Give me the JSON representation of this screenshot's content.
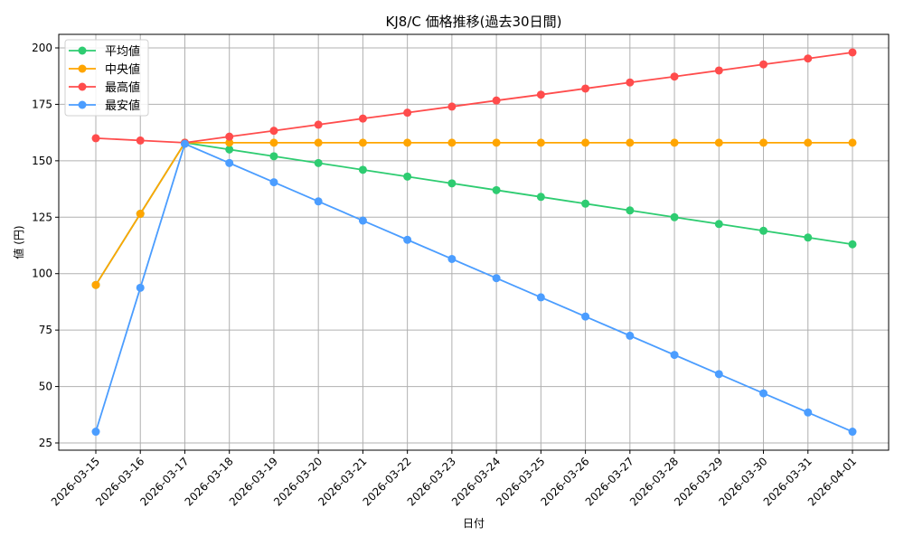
{
  "chart_data": {
    "type": "line",
    "title": "KJ8/C 価格推移(過去30日間)",
    "xlabel": "日付",
    "ylabel": "値 (円)",
    "ylim": [
      22,
      206
    ],
    "yticks": [
      25,
      50,
      75,
      100,
      125,
      150,
      175,
      200
    ],
    "grid": true,
    "legend_position": "top-left",
    "x": [
      "2026-03-15",
      "2026-03-16",
      "2026-03-17",
      "2026-03-18",
      "2026-03-19",
      "2026-03-20",
      "2026-03-21",
      "2026-03-22",
      "2026-03-23",
      "2026-03-24",
      "2026-03-25",
      "2026-03-26",
      "2026-03-27",
      "2026-03-28",
      "2026-03-29",
      "2026-03-30",
      "2026-03-31",
      "2026-04-01"
    ],
    "series": [
      {
        "name": "平均値",
        "color": "#2ecc71",
        "values": [
          95,
          126.5,
          158,
          155,
          152,
          149,
          146,
          143,
          140,
          137,
          134,
          131,
          128,
          125,
          122,
          119,
          116,
          113
        ]
      },
      {
        "name": "中央値",
        "color": "#ffa500",
        "values": [
          95,
          126.5,
          158,
          158,
          158,
          158,
          158,
          158,
          158,
          158,
          158,
          158,
          158,
          158,
          158,
          158,
          158,
          158
        ]
      },
      {
        "name": "最高値",
        "color": "#ff4c4c",
        "values": [
          160,
          159,
          158,
          160.7,
          163.3,
          166,
          168.7,
          171.3,
          174,
          176.7,
          179.3,
          182,
          184.7,
          187.3,
          190,
          192.7,
          195.3,
          198
        ]
      },
      {
        "name": "最安値",
        "color": "#4b9dff",
        "values": [
          30,
          93.75,
          157.5,
          149,
          140.5,
          132,
          123.5,
          115,
          106.5,
          98,
          89.5,
          81,
          72.5,
          64,
          55.5,
          47,
          38.5,
          30
        ]
      }
    ]
  }
}
